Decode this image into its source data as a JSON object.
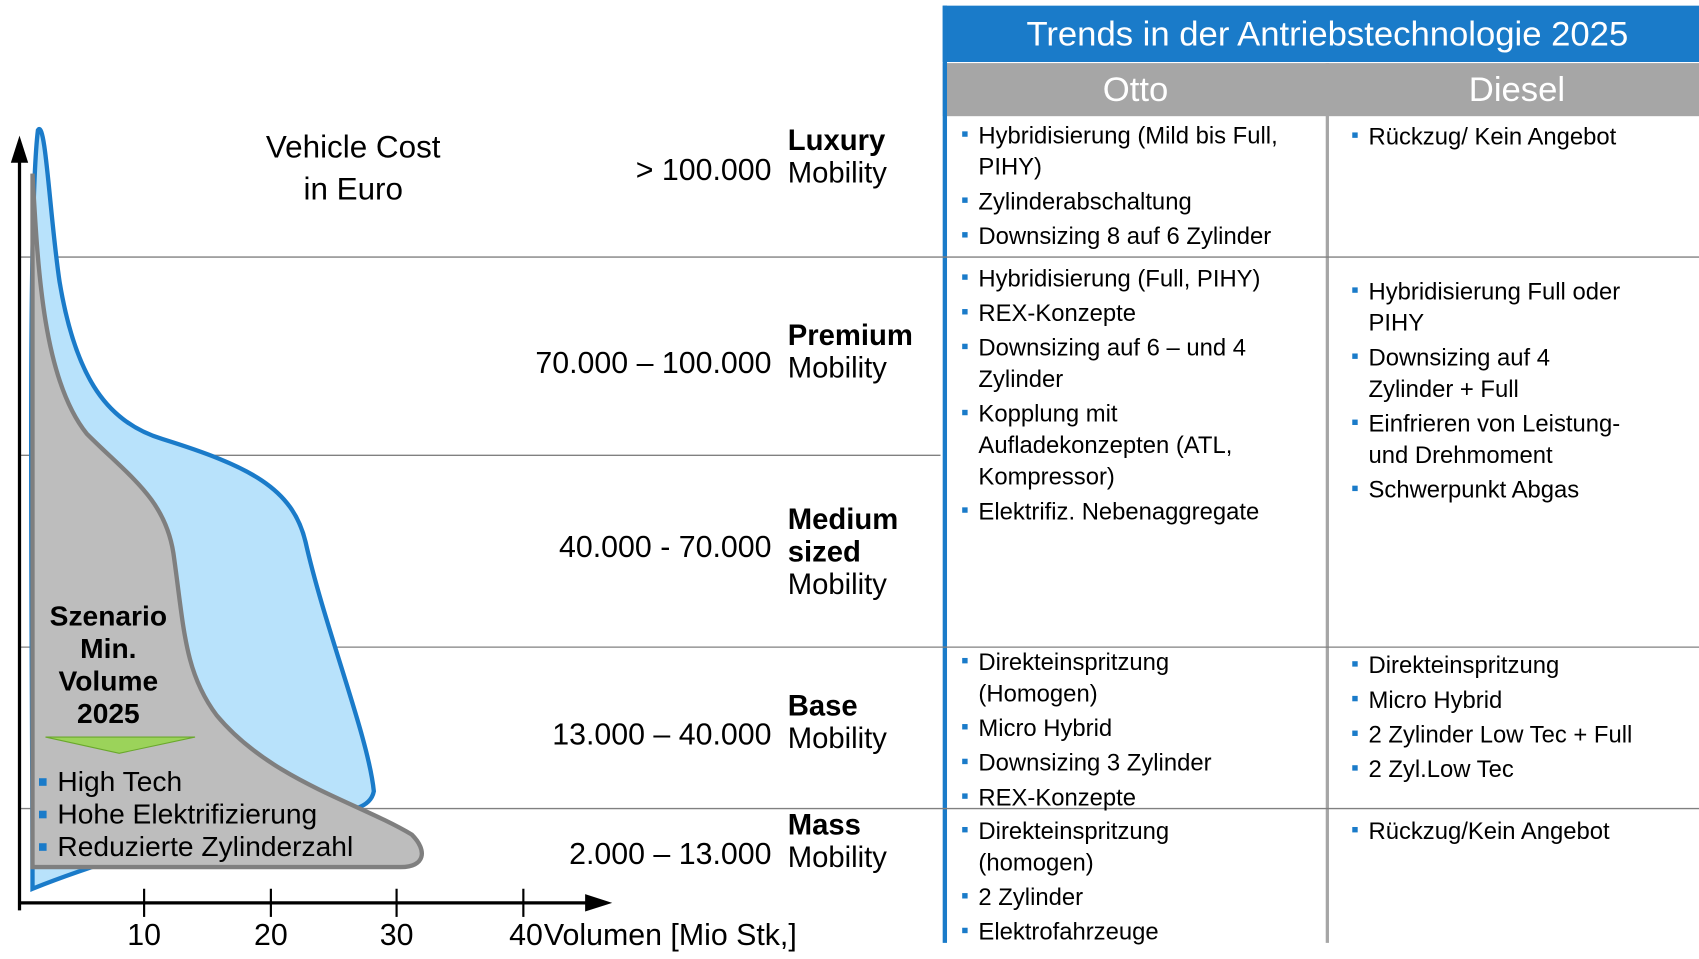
{
  "title": "Trends in der Antriebstechnologie 2025",
  "columns": [
    "Otto",
    "Diesel"
  ],
  "y_label": [
    "Vehicle Cost",
    "in Euro"
  ],
  "x_label": "Volumen [Mio Stk,]",
  "x_ticks": [
    "10",
    "20",
    "30",
    "40"
  ],
  "segments": [
    {
      "price": "> 100.000",
      "name": [
        "Luxury"
      ],
      "suffix": "Mobility"
    },
    {
      "price": "70.000 – 100.000",
      "name": [
        "Premium"
      ],
      "suffix": "Mobility"
    },
    {
      "price": "40.000 - 70.000",
      "name": [
        "Medium",
        "sized"
      ],
      "suffix": "Mobility"
    },
    {
      "price": "13.000 – 40.000",
      "name": [
        "Base"
      ],
      "suffix": "Mobility"
    },
    {
      "price": "2.000 – 13.000",
      "name": [
        "Mass"
      ],
      "suffix": "Mobility"
    }
  ],
  "scenario": {
    "title": [
      "Szenario",
      "Min.",
      "Volume",
      "2025"
    ],
    "bullets": [
      "High Tech",
      "Hohe Elektrifizierung",
      "Reduzierte Zylinderzahl"
    ]
  },
  "table_rows": [
    {
      "otto": [
        [
          "Hybridisierung (Mild bis Full,",
          "PIHY)"
        ],
        [
          "Zylinderabschaltung"
        ],
        [
          "Downsizing 8 auf 6 Zylinder"
        ]
      ],
      "diesel": [
        [
          "Rückzug/ Kein Angebot"
        ]
      ]
    },
    {
      "otto": [
        [
          "Hybridisierung (Full, PIHY)"
        ],
        [
          "REX-Konzepte"
        ],
        [
          "Downsizing auf 6 – und 4",
          "Zylinder"
        ],
        [
          "Kopplung mit",
          "Aufladekonzepten (ATL,",
          "Kompressor)"
        ],
        [
          "Elektrifiz. Nebenaggregate"
        ]
      ],
      "diesel": [
        [
          "Hybridisierung Full oder",
          "PIHY"
        ],
        [
          "Downsizing auf 4",
          "Zylinder + Full"
        ],
        [
          "Einfrieren von Leistung-",
          "und Drehmoment"
        ],
        [
          "Schwerpunkt Abgas"
        ]
      ]
    },
    {
      "otto": [
        [
          "Direkteinspritzung",
          "(Homogen)"
        ],
        [
          "Micro Hybrid"
        ],
        [
          "Downsizing 3 Zylinder"
        ],
        [
          "REX-Konzepte"
        ]
      ],
      "diesel": [
        [
          "Direkteinspritzung"
        ],
        [
          "Micro Hybrid"
        ],
        [
          "2 Zylinder Low Tec + Full"
        ],
        [
          "2 Zyl.Low Tec"
        ]
      ]
    },
    {
      "otto": [
        [
          "Direkteinspritzung",
          "(homogen)"
        ],
        [
          "2 Zylinder"
        ],
        [
          "Elektrofahrzeuge"
        ]
      ],
      "diesel": [
        [
          "Rückzug/Kein Angebot"
        ]
      ]
    }
  ]
}
